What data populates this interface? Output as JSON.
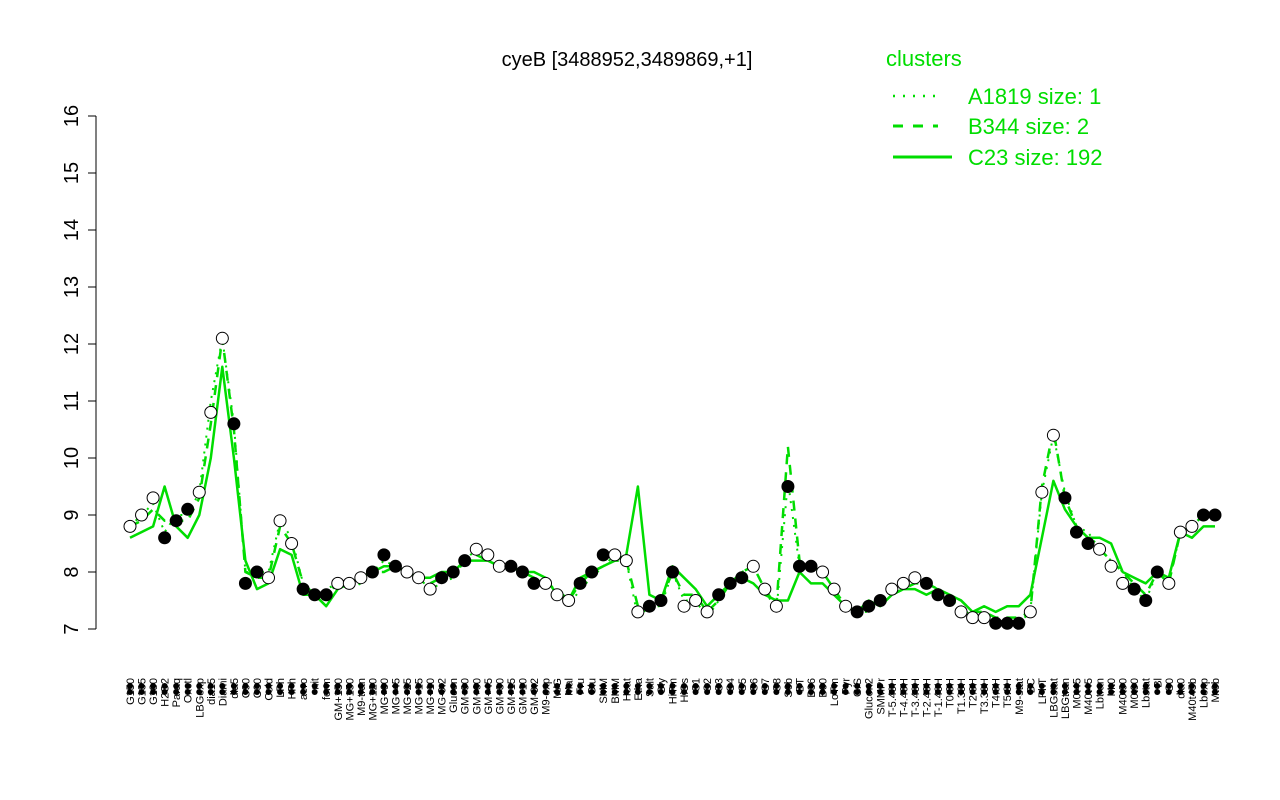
{
  "chart_data": {
    "type": "line",
    "title": "cyeB [3488952,3489869,+1]",
    "xlabel": "",
    "ylabel": "",
    "ylim": [
      7,
      16
    ],
    "yticks": [
      7,
      8,
      9,
      10,
      11,
      12,
      13,
      14,
      15,
      16
    ],
    "colors": {
      "cluster": "#00dd00",
      "point_fill": "#ffffff",
      "point_dark": "#000000"
    },
    "legend": {
      "title": "clusters",
      "placement": "top-right",
      "entries": [
        {
          "label": "A1819 size: 1",
          "style": "dotted"
        },
        {
          "label": "B344 size: 2",
          "style": "dashed"
        },
        {
          "label": "C23 size: 192",
          "style": "solid"
        }
      ]
    },
    "categories": [
      "G150",
      "G135",
      "G180",
      "H2O2",
      "Paraq",
      "Oxctl",
      "LBGexp",
      "dia15",
      "Diami",
      "dia5",
      "C90",
      "C30",
      "Cold",
      "LPh",
      "HPh",
      "aero",
      "nit",
      "ferm",
      "GM+150",
      "MG+150",
      "M9-tran",
      "MG+120",
      "MG+60",
      "MG+45",
      "MG+25",
      "MG+15",
      "MG+10",
      "MG-0.2",
      "Glucon",
      "GM+90",
      "GM+60",
      "GM+45",
      "GM+30",
      "GM+15",
      "GM+10",
      "GM-0.2",
      "M9-exp",
      "M/G",
      "Mal",
      "Fru",
      "Glu",
      "SMM",
      "BMM",
      "Heat",
      "Etha",
      "Salt",
      "Gly",
      "HiTm",
      "HiOs",
      "S1",
      "S2",
      "S3",
      "S4",
      "S5",
      "S6",
      "S7",
      "S8",
      "S6b",
      "BT",
      "B36",
      "B60",
      "LoTm",
      "Pyr",
      "G/S",
      "Glucon2",
      "SMMPr",
      "T-5.40H",
      "T-4.40H",
      "T-3.40H",
      "T-2.40H",
      "T-1.40H",
      "T0.0H",
      "T1.30H",
      "T2.0H",
      "T3.30H",
      "T4.0H",
      "T5.0H",
      "M9-stat",
      "BC",
      "LPhT",
      "LBGstat",
      "LBGtran",
      "M0t45",
      "M40t45",
      "Lbtran",
      "Mt0",
      "M40t90",
      "M0t90",
      "Lbstat",
      "Bl",
      "S0",
      "dia0",
      "M40t45b",
      "Lbexp",
      "Mt0b"
    ],
    "series": [
      {
        "name": "C23 size: 192",
        "style": "solid",
        "values": [
          8.6,
          8.7,
          8.8,
          9.5,
          8.8,
          8.6,
          9.0,
          10.0,
          11.6,
          10.0,
          8.2,
          7.7,
          7.8,
          8.4,
          8.3,
          7.6,
          7.6,
          7.4,
          7.7,
          7.8,
          7.9,
          8.0,
          8.1,
          8.1,
          8.0,
          7.9,
          7.9,
          8.0,
          8.0,
          8.2,
          8.2,
          8.2,
          8.1,
          8.1,
          8.0,
          8.0,
          7.9,
          7.6,
          7.5,
          7.9,
          8.0,
          8.1,
          8.2,
          8.3,
          9.5,
          7.6,
          7.5,
          8.1,
          7.9,
          7.7,
          7.4,
          7.6,
          7.8,
          7.9,
          7.8,
          7.6,
          7.5,
          7.5,
          8.0,
          7.8,
          7.8,
          7.6,
          7.4,
          7.3,
          7.5,
          7.4,
          7.6,
          7.7,
          7.7,
          7.6,
          7.7,
          7.6,
          7.5,
          7.3,
          7.4,
          7.3,
          7.4,
          7.4,
          7.6,
          8.6,
          9.6,
          9.1,
          8.8,
          8.6,
          8.6,
          8.5,
          8.0,
          7.9,
          7.8,
          8.0,
          7.9,
          8.7,
          8.6,
          8.8,
          8.8
        ]
      },
      {
        "name": "B344 size: 2",
        "style": "dashed",
        "values": [
          8.8,
          8.9,
          9.1,
          8.9,
          8.9,
          8.9,
          9.3,
          10.6,
          12.1,
          10.5,
          8.0,
          7.9,
          7.9,
          8.8,
          8.5,
          7.8,
          7.6,
          7.6,
          7.8,
          7.8,
          7.9,
          8.0,
          8.0,
          8.1,
          8.0,
          7.9,
          7.8,
          7.9,
          8.0,
          8.2,
          8.3,
          8.2,
          8.1,
          8.1,
          8.0,
          7.9,
          7.8,
          7.7,
          7.5,
          7.8,
          8.0,
          8.1,
          8.2,
          8.2,
          7.4,
          7.4,
          7.5,
          8.0,
          7.6,
          7.6,
          7.3,
          7.5,
          7.8,
          8.0,
          8.1,
          7.7,
          7.4,
          10.2,
          8.2,
          8.1,
          8.0,
          7.7,
          7.4,
          7.3,
          7.4,
          7.5,
          7.6,
          7.7,
          7.8,
          7.8,
          7.7,
          7.6,
          7.5,
          7.3,
          7.3,
          7.2,
          7.2,
          7.2,
          7.3,
          9.5,
          10.5,
          9.3,
          8.8,
          8.6,
          8.4,
          8.2,
          8.0,
          7.8,
          7.6,
          8.0,
          7.8,
          8.7,
          8.8,
          9.0,
          9.0
        ]
      },
      {
        "name": "A1819 size: 1",
        "style": "dotted",
        "values": [
          8.8,
          9.0,
          9.2,
          8.7,
          9.0,
          9.0,
          9.4,
          11.0,
          12.1,
          10.6,
          8.0,
          8.0,
          8.0,
          8.9,
          8.6,
          7.8,
          7.6,
          7.7,
          7.8,
          7.7,
          7.8,
          8.0,
          8.2,
          8.1,
          8.0,
          7.9,
          7.7,
          7.8,
          7.9,
          8.2,
          8.4,
          8.3,
          8.1,
          8.1,
          8.0,
          7.8,
          7.8,
          7.7,
          7.4,
          7.7,
          7.9,
          8.1,
          8.3,
          8.2,
          7.2,
          7.4,
          7.4,
          8.0,
          7.5,
          7.5,
          7.2,
          7.5,
          7.8,
          8.0,
          8.1,
          7.7,
          7.3,
          9.6,
          8.1,
          8.1,
          8.0,
          7.7,
          7.4,
          7.3,
          7.3,
          7.5,
          7.6,
          7.7,
          7.8,
          7.8,
          7.7,
          7.5,
          7.4,
          7.2,
          7.2,
          7.1,
          7.1,
          7.1,
          7.3,
          9.4,
          10.4,
          9.4,
          8.8,
          8.7,
          8.4,
          8.2,
          8.0,
          7.7,
          7.5,
          8.0,
          7.8,
          8.7,
          8.8,
          9.0,
          9.0
        ]
      }
    ],
    "points": [
      8.8,
      9.0,
      9.3,
      8.6,
      8.9,
      9.1,
      9.4,
      10.8,
      12.1,
      10.6,
      7.8,
      8.0,
      7.9,
      8.9,
      8.5,
      7.7,
      7.6,
      7.6,
      7.8,
      7.8,
      7.9,
      8.0,
      8.3,
      8.1,
      8.0,
      7.9,
      7.7,
      7.9,
      8.0,
      8.2,
      8.4,
      8.3,
      8.1,
      8.1,
      8.0,
      7.8,
      7.8,
      7.6,
      7.5,
      7.8,
      8.0,
      8.3,
      8.3,
      8.2,
      7.3,
      7.4,
      7.5,
      8.0,
      7.4,
      7.5,
      7.3,
      7.6,
      7.8,
      7.9,
      8.1,
      7.7,
      7.4,
      9.5,
      8.1,
      8.1,
      8.0,
      7.7,
      7.4,
      7.3,
      7.4,
      7.5,
      7.7,
      7.8,
      7.9,
      7.8,
      7.6,
      7.5,
      7.3,
      7.2,
      7.2,
      7.1,
      7.1,
      7.1,
      7.3,
      9.4,
      10.4,
      9.3,
      8.7,
      8.5,
      8.4,
      8.1,
      7.8,
      7.7,
      7.5,
      8.0,
      7.8,
      8.7,
      8.8,
      9.0,
      9.0
    ]
  }
}
